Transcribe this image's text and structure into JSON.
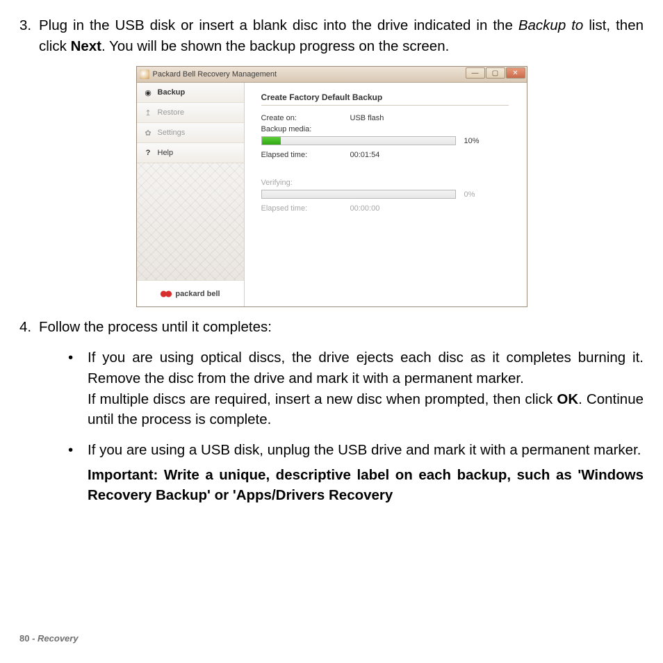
{
  "doc": {
    "step3": {
      "num": "3.",
      "text_a": "Plug in the USB disk or insert a blank disc into the drive indicated in the ",
      "italic": "Backup to",
      "text_b": " list, then click ",
      "bold": "Next",
      "text_c": ". You will be shown the backup progress on the screen."
    },
    "step4": {
      "num": "4.",
      "text": "Follow the process until it completes:"
    },
    "bullet1": {
      "a": "If you are using optical discs, the drive ejects each disc as it completes burning it. Remove the disc from the drive and mark it with a permanent marker.",
      "b1": "If multiple discs are required, insert a new disc when prompted, then click ",
      "b_bold": "OK",
      "b2": ". Continue until the process is complete."
    },
    "bullet2": "If you are using a USB disk, unplug the USB drive and mark it with a permanent marker.",
    "important": "Important: Write a unique, descriptive label on each backup, such as 'Windows Recovery Backup' or 'Apps/Drivers Recovery",
    "footer_page": "80 -",
    "footer_section": "Recovery"
  },
  "window": {
    "title": "Packard Bell Recovery Management",
    "nav": {
      "backup": "Backup",
      "restore": "Restore",
      "settings": "Settings",
      "help": "Help"
    },
    "brand": "packard bell",
    "heading": "Create Factory Default Backup",
    "create_on_label": "Create on:",
    "create_on_value": "USB flash",
    "backup_media_label": "Backup media:",
    "progress1_pct_text": "10%",
    "progress1_fill_pct": 10,
    "elapsed1_label": "Elapsed time:",
    "elapsed1_value": "00:01:54",
    "verify_label": "Verifying:",
    "progress2_pct_text": "0%",
    "progress2_fill_pct": 0,
    "elapsed2_label": "Elapsed time:",
    "elapsed2_value": "00:00:00",
    "colors": {
      "titlebar_top": "#ede3d6",
      "titlebar_bottom": "#d9c8b4",
      "close_btn": "#c96a4a",
      "progress_fill": "#2fa812",
      "border": "#9e8b7a"
    }
  }
}
